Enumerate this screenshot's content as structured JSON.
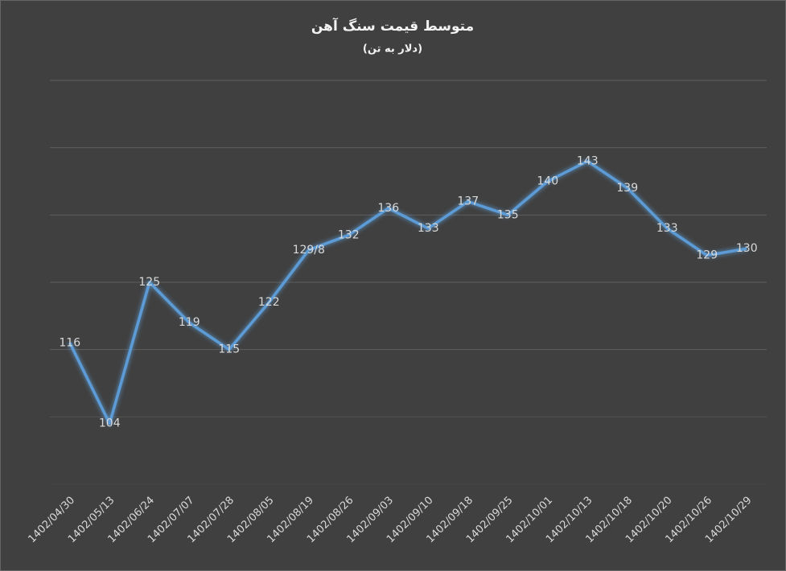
{
  "chart_data": {
    "type": "line",
    "title": "متوسط قیمت سنگ آهن",
    "subtitle": "(دلار به تن)",
    "categories": [
      "1402/04/30",
      "1402/05/13",
      "1402/06/24",
      "1402/07/07",
      "1402/07/28",
      "1402/08/05",
      "1402/08/19",
      "1402/08/26",
      "1402/09/03",
      "1402/09/10",
      "1402/09/18",
      "1402/09/25",
      "1402/10/01",
      "1402/10/13",
      "1402/10/18",
      "1402/10/20",
      "1402/10/26",
      "1402/10/29"
    ],
    "series": [
      {
        "color": "#5b9bd5",
        "values": [
          116,
          104,
          125,
          119,
          115,
          122,
          129.8,
          132,
          136,
          133,
          137,
          135,
          140,
          143,
          139,
          133,
          129,
          130
        ],
        "value_labels": [
          "116",
          "104",
          "125",
          "119",
          "115",
          "122",
          "129/8",
          "132",
          "136",
          "133",
          "137",
          "135",
          "140",
          "143",
          "139",
          "133",
          "129",
          "130"
        ]
      }
    ],
    "ylim": [
      95,
      155
    ],
    "yticks": [
      95,
      105,
      115,
      125,
      135,
      145,
      155
    ],
    "grid": true
  }
}
